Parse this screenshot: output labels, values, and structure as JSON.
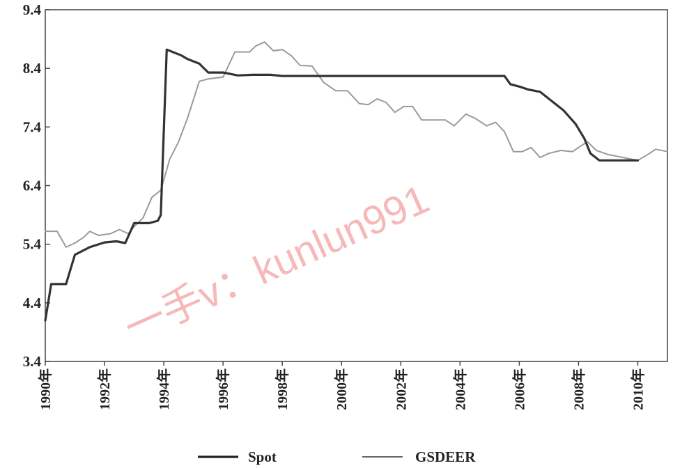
{
  "chart_data": {
    "type": "line",
    "title": "",
    "xlabel": "",
    "ylabel": "",
    "xlim": [
      1990,
      2011
    ],
    "ylim": [
      3.4,
      9.4
    ],
    "y_ticks": [
      "3.4",
      "4.4",
      "5.4",
      "6.4",
      "7.4",
      "8.4",
      "9.4"
    ],
    "x_ticks": [
      "1990年",
      "1992年",
      "1994年",
      "1996年",
      "1998年",
      "2000年",
      "2002年",
      "2004年",
      "2006年",
      "2008年",
      "2010年"
    ],
    "grid": false,
    "legend_position": "bottom",
    "series": [
      {
        "name": "Spot",
        "color": "#333333",
        "points": [
          [
            1990.0,
            4.1
          ],
          [
            1990.2,
            4.72
          ],
          [
            1990.7,
            4.72
          ],
          [
            1991.0,
            5.22
          ],
          [
            1991.5,
            5.35
          ],
          [
            1992.0,
            5.43
          ],
          [
            1992.4,
            5.45
          ],
          [
            1992.7,
            5.42
          ],
          [
            1993.0,
            5.76
          ],
          [
            1993.5,
            5.76
          ],
          [
            1993.8,
            5.8
          ],
          [
            1993.9,
            5.9
          ],
          [
            1994.1,
            8.72
          ],
          [
            1994.6,
            8.62
          ],
          [
            1994.8,
            8.56
          ],
          [
            1995.2,
            8.48
          ],
          [
            1995.5,
            8.33
          ],
          [
            1996.0,
            8.33
          ],
          [
            1996.5,
            8.28
          ],
          [
            1997.0,
            8.29
          ],
          [
            1997.6,
            8.29
          ],
          [
            1998.0,
            8.27
          ],
          [
            2000.0,
            8.27
          ],
          [
            2002.0,
            8.27
          ],
          [
            2004.0,
            8.27
          ],
          [
            2005.5,
            8.27
          ],
          [
            2005.7,
            8.13
          ],
          [
            2006.0,
            8.09
          ],
          [
            2006.3,
            8.04
          ],
          [
            2006.7,
            8.0
          ],
          [
            2007.0,
            7.88
          ],
          [
            2007.5,
            7.68
          ],
          [
            2007.9,
            7.45
          ],
          [
            2008.2,
            7.2
          ],
          [
            2008.4,
            6.95
          ],
          [
            2008.7,
            6.83
          ],
          [
            2009.5,
            6.83
          ],
          [
            2010.0,
            6.83
          ]
        ]
      },
      {
        "name": "GSDEER",
        "color": "#9a9a9a",
        "points": [
          [
            1990.0,
            5.62
          ],
          [
            1990.4,
            5.62
          ],
          [
            1990.7,
            5.35
          ],
          [
            1991.0,
            5.42
          ],
          [
            1991.3,
            5.52
          ],
          [
            1991.5,
            5.62
          ],
          [
            1991.8,
            5.55
          ],
          [
            1992.2,
            5.58
          ],
          [
            1992.5,
            5.65
          ],
          [
            1992.8,
            5.58
          ],
          [
            1993.0,
            5.7
          ],
          [
            1993.3,
            5.85
          ],
          [
            1993.6,
            6.2
          ],
          [
            1993.9,
            6.32
          ],
          [
            1994.2,
            6.85
          ],
          [
            1994.5,
            7.15
          ],
          [
            1994.8,
            7.55
          ],
          [
            1995.2,
            8.18
          ],
          [
            1995.5,
            8.22
          ],
          [
            1996.0,
            8.25
          ],
          [
            1996.4,
            8.68
          ],
          [
            1996.9,
            8.68
          ],
          [
            1997.1,
            8.78
          ],
          [
            1997.4,
            8.85
          ],
          [
            1997.7,
            8.7
          ],
          [
            1998.0,
            8.72
          ],
          [
            1998.3,
            8.62
          ],
          [
            1998.6,
            8.45
          ],
          [
            1999.0,
            8.44
          ],
          [
            1999.4,
            8.16
          ],
          [
            1999.8,
            8.02
          ],
          [
            2000.2,
            8.02
          ],
          [
            2000.6,
            7.8
          ],
          [
            2000.9,
            7.78
          ],
          [
            2001.2,
            7.88
          ],
          [
            2001.5,
            7.82
          ],
          [
            2001.8,
            7.65
          ],
          [
            2002.1,
            7.75
          ],
          [
            2002.4,
            7.75
          ],
          [
            2002.7,
            7.52
          ],
          [
            2003.1,
            7.52
          ],
          [
            2003.5,
            7.52
          ],
          [
            2003.8,
            7.42
          ],
          [
            2004.2,
            7.62
          ],
          [
            2004.5,
            7.55
          ],
          [
            2004.9,
            7.42
          ],
          [
            2005.2,
            7.48
          ],
          [
            2005.5,
            7.32
          ],
          [
            2005.8,
            6.98
          ],
          [
            2006.1,
            6.98
          ],
          [
            2006.4,
            7.05
          ],
          [
            2006.7,
            6.88
          ],
          [
            2007.0,
            6.95
          ],
          [
            2007.4,
            7.0
          ],
          [
            2007.8,
            6.98
          ],
          [
            2008.0,
            7.05
          ],
          [
            2008.3,
            7.15
          ],
          [
            2008.6,
            7.0
          ],
          [
            2009.0,
            6.93
          ],
          [
            2009.5,
            6.88
          ],
          [
            2010.0,
            6.83
          ],
          [
            2010.4,
            6.95
          ],
          [
            2010.6,
            7.02
          ],
          [
            2011.0,
            6.98
          ]
        ]
      }
    ],
    "watermark": "一手v：kunlun991"
  }
}
